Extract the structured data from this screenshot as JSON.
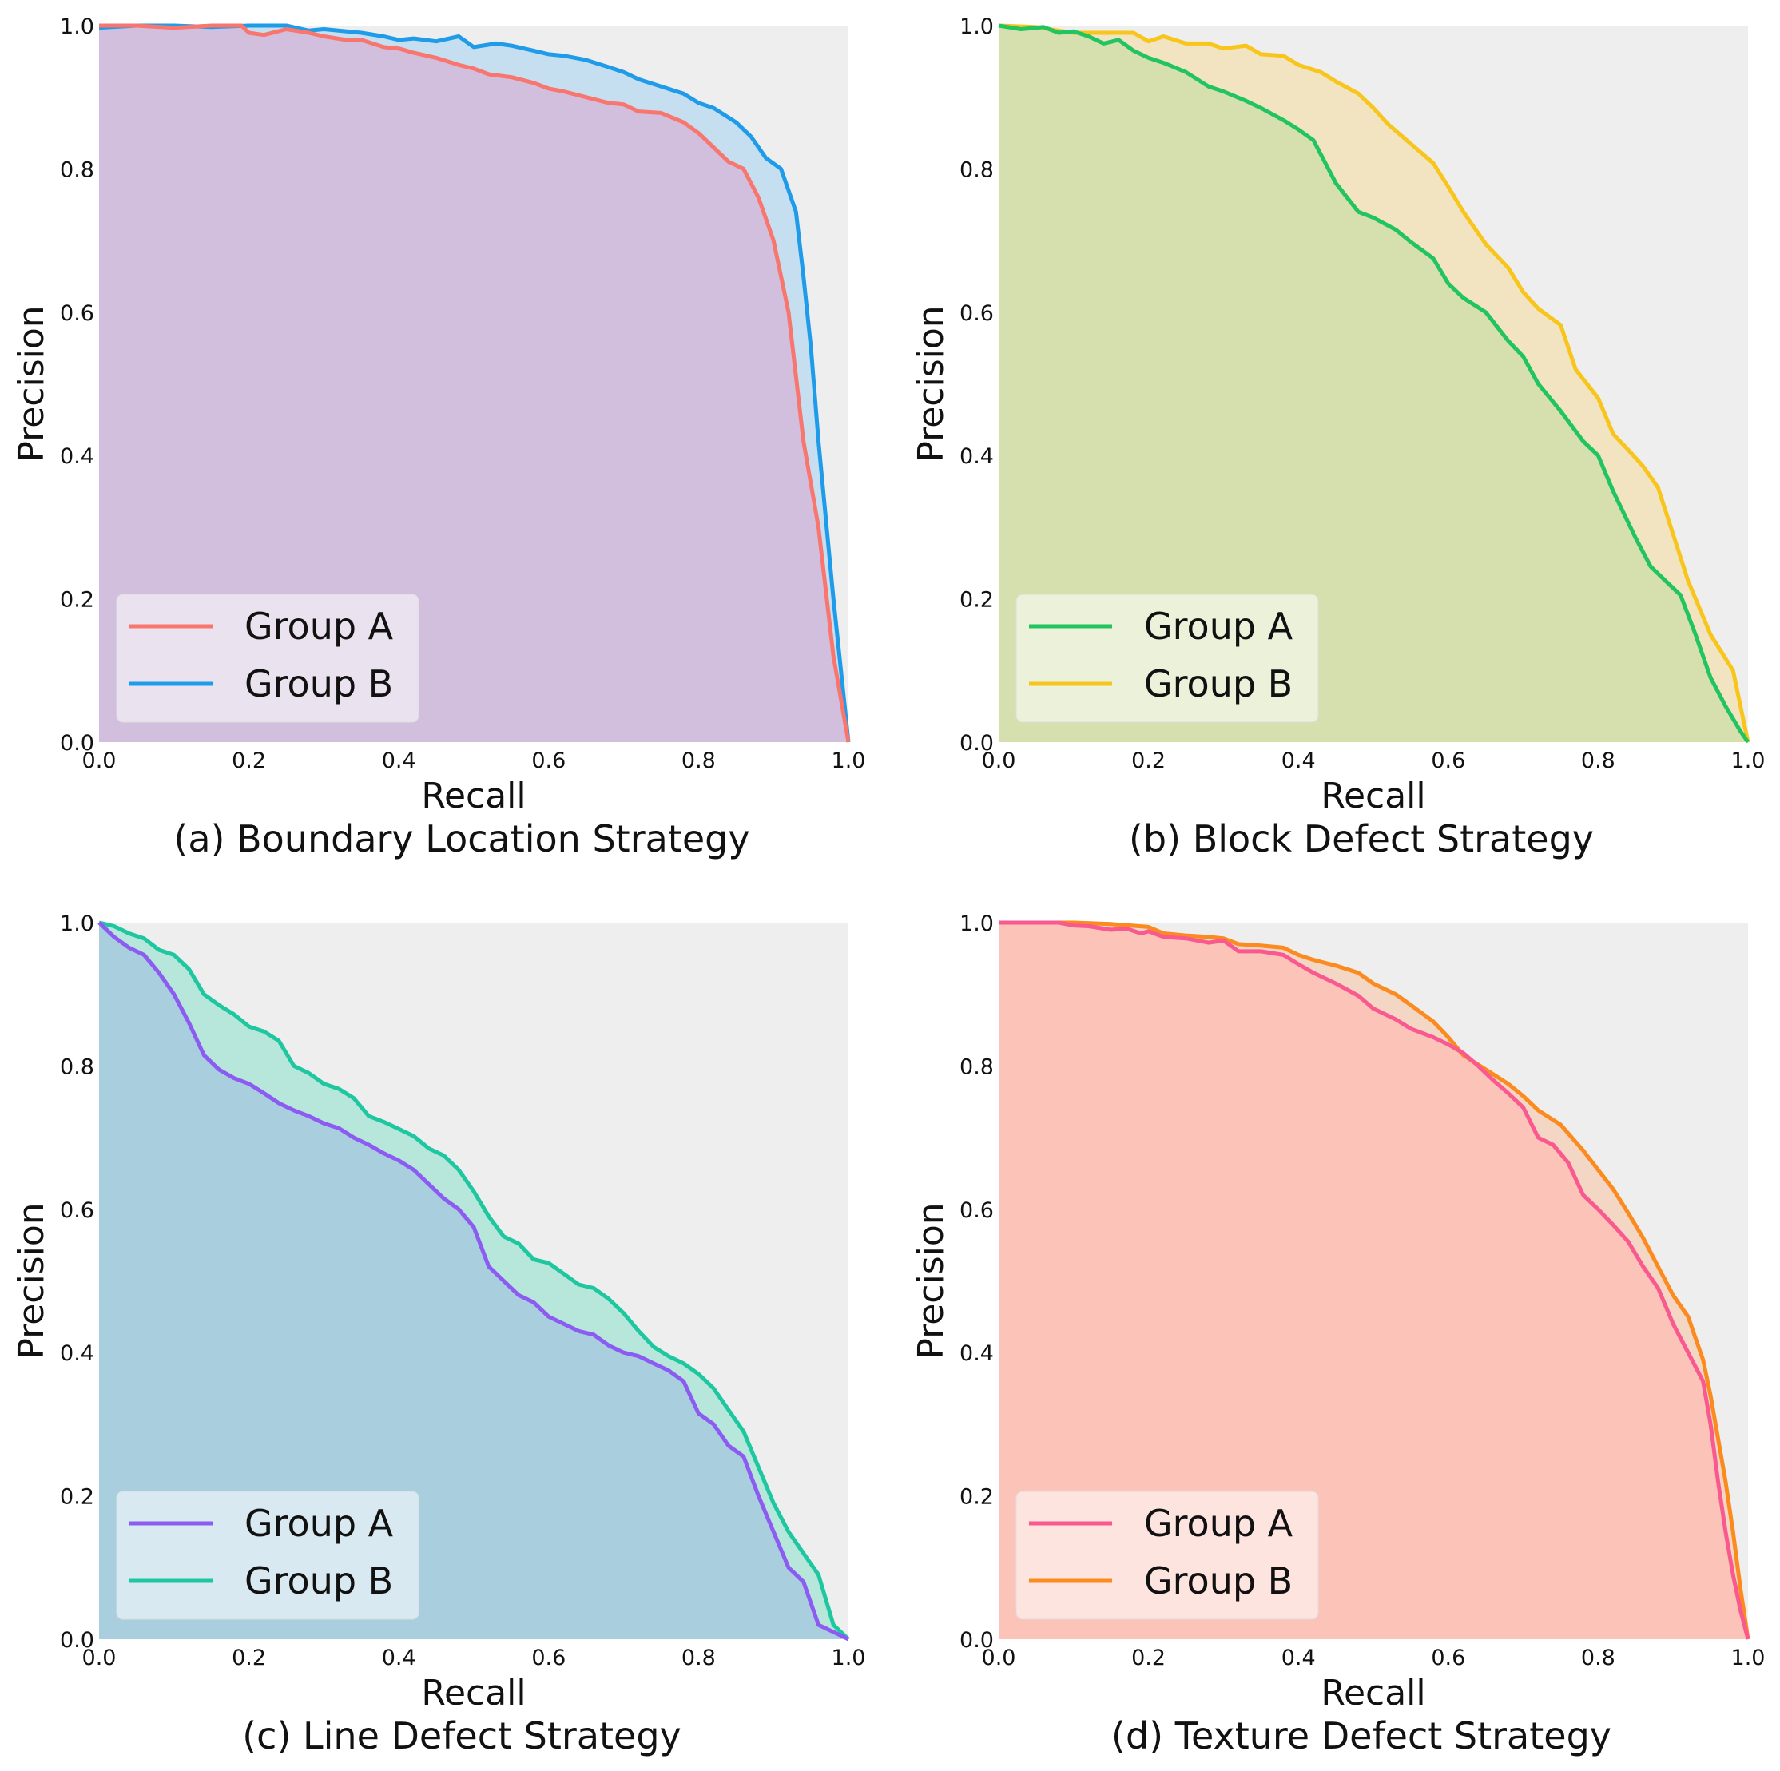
{
  "chart_data": [
    {
      "type": "area",
      "title": "(a) Boundary Location Strategy",
      "xlabel": "Recall",
      "ylabel": "Precision",
      "xlim": [
        0,
        1
      ],
      "ylim": [
        0,
        1
      ],
      "xticks": [
        "0.0",
        "0.2",
        "0.4",
        "0.6",
        "0.8",
        "1.0"
      ],
      "yticks": [
        "0.0",
        "0.2",
        "0.4",
        "0.6",
        "0.8",
        "1.0"
      ],
      "grid": false,
      "legend_position": "bottom-left",
      "series": [
        {
          "name": "Group A",
          "color": "#f8766d",
          "fill": "#d2bedd",
          "x": [
            0,
            0.05,
            0.1,
            0.15,
            0.19,
            0.2,
            0.22,
            0.25,
            0.28,
            0.3,
            0.33,
            0.35,
            0.38,
            0.4,
            0.42,
            0.45,
            0.48,
            0.5,
            0.52,
            0.55,
            0.58,
            0.6,
            0.62,
            0.65,
            0.68,
            0.7,
            0.72,
            0.75,
            0.78,
            0.8,
            0.82,
            0.84,
            0.86,
            0.88,
            0.9,
            0.92,
            0.94,
            0.96,
            0.98,
            1.0
          ],
          "y": [
            1.0,
            1.0,
            0.997,
            1.0,
            1.0,
            0.99,
            0.987,
            0.995,
            0.99,
            0.985,
            0.98,
            0.98,
            0.97,
            0.968,
            0.962,
            0.955,
            0.945,
            0.94,
            0.932,
            0.928,
            0.92,
            0.912,
            0.908,
            0.9,
            0.892,
            0.89,
            0.88,
            0.878,
            0.865,
            0.85,
            0.83,
            0.81,
            0.8,
            0.76,
            0.7,
            0.6,
            0.42,
            0.3,
            0.12,
            0.0
          ]
        },
        {
          "name": "Group B",
          "color": "#1e9be9",
          "fill": "#c5dff0",
          "x": [
            0,
            0.05,
            0.1,
            0.15,
            0.2,
            0.25,
            0.28,
            0.3,
            0.35,
            0.38,
            0.4,
            0.42,
            0.45,
            0.48,
            0.5,
            0.53,
            0.55,
            0.58,
            0.6,
            0.62,
            0.65,
            0.68,
            0.7,
            0.72,
            0.75,
            0.78,
            0.8,
            0.82,
            0.85,
            0.87,
            0.89,
            0.91,
            0.92,
            0.93,
            0.94,
            0.95,
            0.96,
            0.98,
            1.0
          ],
          "y": [
            0.997,
            1.0,
            1.0,
            0.998,
            1.0,
            1.0,
            0.993,
            0.995,
            0.99,
            0.985,
            0.98,
            0.982,
            0.978,
            0.985,
            0.97,
            0.975,
            0.972,
            0.965,
            0.96,
            0.958,
            0.952,
            0.942,
            0.935,
            0.925,
            0.915,
            0.905,
            0.892,
            0.885,
            0.865,
            0.845,
            0.815,
            0.8,
            0.77,
            0.74,
            0.65,
            0.55,
            0.42,
            0.2,
            0.0
          ]
        }
      ]
    },
    {
      "type": "area",
      "title": "(b) Block Defect Strategy",
      "xlabel": "Recall",
      "ylabel": "Precision",
      "xlim": [
        0,
        1
      ],
      "ylim": [
        0,
        1
      ],
      "xticks": [
        "0.0",
        "0.2",
        "0.4",
        "0.6",
        "0.8",
        "1.0"
      ],
      "yticks": [
        "0.0",
        "0.2",
        "0.4",
        "0.6",
        "0.8",
        "1.0"
      ],
      "grid": false,
      "legend_position": "bottom-left",
      "series": [
        {
          "name": "Group A",
          "color": "#21c45e",
          "fill": "#d6dfae",
          "x": [
            0,
            0.03,
            0.06,
            0.08,
            0.1,
            0.12,
            0.14,
            0.16,
            0.18,
            0.2,
            0.22,
            0.25,
            0.28,
            0.3,
            0.33,
            0.35,
            0.38,
            0.4,
            0.42,
            0.45,
            0.48,
            0.5,
            0.53,
            0.55,
            0.58,
            0.6,
            0.62,
            0.65,
            0.68,
            0.7,
            0.72,
            0.75,
            0.78,
            0.8,
            0.82,
            0.85,
            0.87,
            0.89,
            0.91,
            0.93,
            0.95,
            0.97,
            0.99,
            1.0
          ],
          "y": [
            1.0,
            0.995,
            0.998,
            0.99,
            0.992,
            0.985,
            0.975,
            0.98,
            0.965,
            0.955,
            0.948,
            0.935,
            0.915,
            0.908,
            0.895,
            0.885,
            0.868,
            0.855,
            0.84,
            0.78,
            0.74,
            0.732,
            0.715,
            0.698,
            0.675,
            0.64,
            0.62,
            0.6,
            0.56,
            0.538,
            0.5,
            0.462,
            0.42,
            0.4,
            0.35,
            0.285,
            0.245,
            0.225,
            0.205,
            0.15,
            0.09,
            0.05,
            0.015,
            0.0
          ]
        },
        {
          "name": "Group B",
          "color": "#f8c51c",
          "fill": "#f2e4c0",
          "x": [
            0,
            0.05,
            0.08,
            0.1,
            0.12,
            0.15,
            0.18,
            0.2,
            0.22,
            0.25,
            0.28,
            0.3,
            0.33,
            0.35,
            0.38,
            0.4,
            0.43,
            0.45,
            0.48,
            0.5,
            0.52,
            0.55,
            0.58,
            0.6,
            0.62,
            0.65,
            0.68,
            0.7,
            0.72,
            0.75,
            0.77,
            0.8,
            0.82,
            0.84,
            0.86,
            0.88,
            0.9,
            0.92,
            0.95,
            0.98,
            1.0
          ],
          "y": [
            1.0,
            0.998,
            0.993,
            0.99,
            0.99,
            0.99,
            0.99,
            0.978,
            0.985,
            0.975,
            0.975,
            0.968,
            0.972,
            0.96,
            0.958,
            0.945,
            0.935,
            0.922,
            0.905,
            0.885,
            0.862,
            0.835,
            0.808,
            0.775,
            0.74,
            0.695,
            0.662,
            0.628,
            0.605,
            0.582,
            0.52,
            0.48,
            0.43,
            0.408,
            0.385,
            0.355,
            0.29,
            0.225,
            0.15,
            0.1,
            0.0
          ]
        }
      ]
    },
    {
      "type": "area",
      "title": "(c) Line Defect Strategy",
      "xlabel": "Recall",
      "ylabel": "Precision",
      "xlim": [
        0,
        1
      ],
      "ylim": [
        0,
        1
      ],
      "xticks": [
        "0.0",
        "0.2",
        "0.4",
        "0.6",
        "0.8",
        "1.0"
      ],
      "yticks": [
        "0.0",
        "0.2",
        "0.4",
        "0.6",
        "0.8",
        "1.0"
      ],
      "grid": false,
      "legend_position": "bottom-left",
      "series": [
        {
          "name": "Group A",
          "color": "#8c5cf2",
          "fill": "#a9cfdf",
          "x": [
            0,
            0.02,
            0.04,
            0.06,
            0.08,
            0.1,
            0.12,
            0.14,
            0.16,
            0.18,
            0.2,
            0.22,
            0.24,
            0.26,
            0.28,
            0.3,
            0.32,
            0.34,
            0.36,
            0.38,
            0.4,
            0.42,
            0.44,
            0.46,
            0.48,
            0.5,
            0.52,
            0.54,
            0.56,
            0.58,
            0.6,
            0.62,
            0.64,
            0.66,
            0.68,
            0.7,
            0.72,
            0.74,
            0.76,
            0.78,
            0.8,
            0.82,
            0.84,
            0.86,
            0.88,
            0.9,
            0.92,
            0.94,
            0.96,
            0.98,
            1.0
          ],
          "y": [
            1.0,
            0.98,
            0.965,
            0.955,
            0.93,
            0.9,
            0.86,
            0.815,
            0.795,
            0.783,
            0.775,
            0.762,
            0.748,
            0.738,
            0.73,
            0.72,
            0.713,
            0.7,
            0.69,
            0.678,
            0.668,
            0.655,
            0.635,
            0.615,
            0.6,
            0.575,
            0.52,
            0.5,
            0.48,
            0.47,
            0.45,
            0.44,
            0.43,
            0.425,
            0.41,
            0.4,
            0.395,
            0.385,
            0.375,
            0.36,
            0.315,
            0.3,
            0.27,
            0.255,
            0.2,
            0.15,
            0.1,
            0.08,
            0.02,
            0.01,
            0.0
          ]
        },
        {
          "name": "Group B",
          "color": "#1ec7a0",
          "fill": "#b7e6db",
          "x": [
            0,
            0.02,
            0.04,
            0.06,
            0.08,
            0.1,
            0.12,
            0.14,
            0.16,
            0.18,
            0.2,
            0.22,
            0.24,
            0.26,
            0.28,
            0.3,
            0.32,
            0.34,
            0.36,
            0.38,
            0.4,
            0.42,
            0.44,
            0.46,
            0.48,
            0.5,
            0.52,
            0.54,
            0.56,
            0.58,
            0.6,
            0.62,
            0.64,
            0.66,
            0.68,
            0.7,
            0.72,
            0.74,
            0.76,
            0.78,
            0.8,
            0.82,
            0.84,
            0.86,
            0.88,
            0.9,
            0.92,
            0.94,
            0.96,
            0.98,
            1.0
          ],
          "y": [
            1.0,
            0.995,
            0.985,
            0.978,
            0.962,
            0.955,
            0.935,
            0.9,
            0.885,
            0.872,
            0.855,
            0.848,
            0.835,
            0.8,
            0.79,
            0.775,
            0.768,
            0.755,
            0.73,
            0.722,
            0.712,
            0.702,
            0.685,
            0.675,
            0.655,
            0.625,
            0.59,
            0.562,
            0.552,
            0.53,
            0.525,
            0.51,
            0.495,
            0.49,
            0.475,
            0.455,
            0.43,
            0.408,
            0.395,
            0.385,
            0.37,
            0.35,
            0.32,
            0.29,
            0.24,
            0.19,
            0.15,
            0.12,
            0.09,
            0.02,
            0.0
          ]
        }
      ]
    },
    {
      "type": "area",
      "title": "(d) Texture Defect Strategy",
      "xlabel": "Recall",
      "ylabel": "Precision",
      "xlim": [
        0,
        1
      ],
      "ylim": [
        0,
        1
      ],
      "xticks": [
        "0.0",
        "0.2",
        "0.4",
        "0.6",
        "0.8",
        "1.0"
      ],
      "yticks": [
        "0.0",
        "0.2",
        "0.4",
        "0.6",
        "0.8",
        "1.0"
      ],
      "grid": false,
      "legend_position": "bottom-left",
      "series": [
        {
          "name": "Group A",
          "color": "#f9598f",
          "fill": "#fcc4b9",
          "x": [
            0,
            0.05,
            0.08,
            0.1,
            0.12,
            0.15,
            0.17,
            0.19,
            0.2,
            0.22,
            0.25,
            0.28,
            0.3,
            0.32,
            0.35,
            0.38,
            0.4,
            0.42,
            0.45,
            0.48,
            0.5,
            0.53,
            0.55,
            0.58,
            0.6,
            0.62,
            0.64,
            0.66,
            0.68,
            0.7,
            0.72,
            0.74,
            0.76,
            0.78,
            0.8,
            0.82,
            0.84,
            0.86,
            0.88,
            0.9,
            0.92,
            0.94,
            0.95,
            0.96,
            0.97,
            0.98,
            0.99,
            1.0
          ],
          "y": [
            1.0,
            1.0,
            1.0,
            0.996,
            0.995,
            0.99,
            0.992,
            0.985,
            0.988,
            0.98,
            0.978,
            0.972,
            0.975,
            0.96,
            0.96,
            0.955,
            0.942,
            0.93,
            0.915,
            0.898,
            0.88,
            0.865,
            0.852,
            0.84,
            0.83,
            0.818,
            0.8,
            0.78,
            0.762,
            0.742,
            0.7,
            0.69,
            0.665,
            0.62,
            0.6,
            0.578,
            0.555,
            0.52,
            0.49,
            0.44,
            0.4,
            0.36,
            0.3,
            0.22,
            0.15,
            0.09,
            0.04,
            0.0
          ]
        },
        {
          "name": "Group B",
          "color": "#fb8a1f",
          "fill": "#f3d6c4",
          "x": [
            0,
            0.05,
            0.1,
            0.15,
            0.2,
            0.22,
            0.25,
            0.28,
            0.3,
            0.32,
            0.35,
            0.38,
            0.4,
            0.42,
            0.45,
            0.48,
            0.5,
            0.53,
            0.55,
            0.58,
            0.6,
            0.62,
            0.65,
            0.68,
            0.7,
            0.72,
            0.75,
            0.78,
            0.8,
            0.82,
            0.84,
            0.86,
            0.88,
            0.9,
            0.92,
            0.93,
            0.94,
            0.95,
            0.96,
            0.97,
            0.98,
            0.99,
            1.0
          ],
          "y": [
            1.0,
            1.0,
            1.0,
            0.998,
            0.994,
            0.985,
            0.982,
            0.98,
            0.978,
            0.97,
            0.968,
            0.965,
            0.955,
            0.948,
            0.94,
            0.93,
            0.915,
            0.9,
            0.885,
            0.862,
            0.84,
            0.815,
            0.795,
            0.775,
            0.758,
            0.738,
            0.718,
            0.682,
            0.655,
            0.628,
            0.595,
            0.56,
            0.52,
            0.48,
            0.45,
            0.42,
            0.39,
            0.34,
            0.28,
            0.22,
            0.15,
            0.07,
            0.0
          ]
        }
      ]
    }
  ]
}
